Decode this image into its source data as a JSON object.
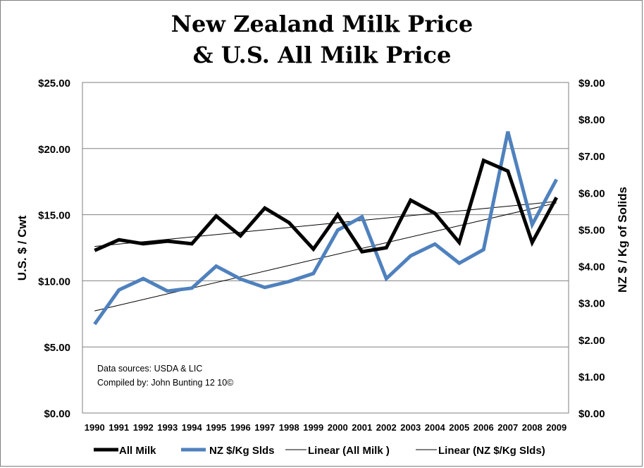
{
  "chart_data": {
    "type": "line",
    "title_lines": [
      "New Zealand Milk Price",
      "& U.S. All Milk Price"
    ],
    "x": [
      "1990",
      "1991",
      "1992",
      "1993",
      "1994",
      "1995",
      "1996",
      "1997",
      "1998",
      "1999",
      "2000",
      "2001",
      "2002",
      "2003",
      "2004",
      "2005",
      "2006",
      "2007",
      "2008",
      "2009"
    ],
    "ylabel_left": "U.S. $ / Cwt",
    "ylabel_right": "NZ $ / Kg of Solids",
    "ylim_left": [
      0,
      25
    ],
    "ylim_right": [
      0,
      9
    ],
    "yticks_left": [
      "$0.00",
      "$5.00",
      "$10.00",
      "$15.00",
      "$20.00",
      "$25.00"
    ],
    "yticks_right": [
      "$0.00",
      "$1.00",
      "$2.00",
      "$3.00",
      "$4.00",
      "$5.00",
      "$6.00",
      "$7.00",
      "$8.00",
      "$9.00"
    ],
    "grid": "horizontal",
    "legend_position": "bottom",
    "series": [
      {
        "name": "All Milk",
        "axis": "left",
        "color": "#000000",
        "values": [
          12.3,
          13.1,
          12.8,
          13.0,
          12.8,
          14.9,
          13.4,
          15.5,
          14.4,
          12.4,
          15.0,
          12.2,
          12.5,
          16.1,
          15.1,
          12.9,
          19.1,
          18.3,
          12.9,
          16.3
        ]
      },
      {
        "name": "NZ $/Kg Slds",
        "axis": "right",
        "color": "#4f81bd",
        "values": [
          2.42,
          3.35,
          3.66,
          3.32,
          3.4,
          4.0,
          3.65,
          3.42,
          3.58,
          3.8,
          4.98,
          5.34,
          3.66,
          4.28,
          4.6,
          4.08,
          4.45,
          7.66,
          5.13,
          6.36
        ]
      }
    ],
    "trendlines": [
      {
        "name": "Linear (All Milk )",
        "of": "All Milk",
        "axis": "left",
        "start": 12.6,
        "end": 16.0,
        "color": "#000000"
      },
      {
        "name": "Linear (NZ $/Kg Slds)",
        "of": "NZ $/Kg Slds",
        "axis": "right",
        "start": 2.78,
        "end": 5.72,
        "color": "#000000"
      }
    ],
    "annotations": [
      "Data sources: USDA & LIC",
      "Compiled by: John Bunting 12 10©"
    ]
  }
}
